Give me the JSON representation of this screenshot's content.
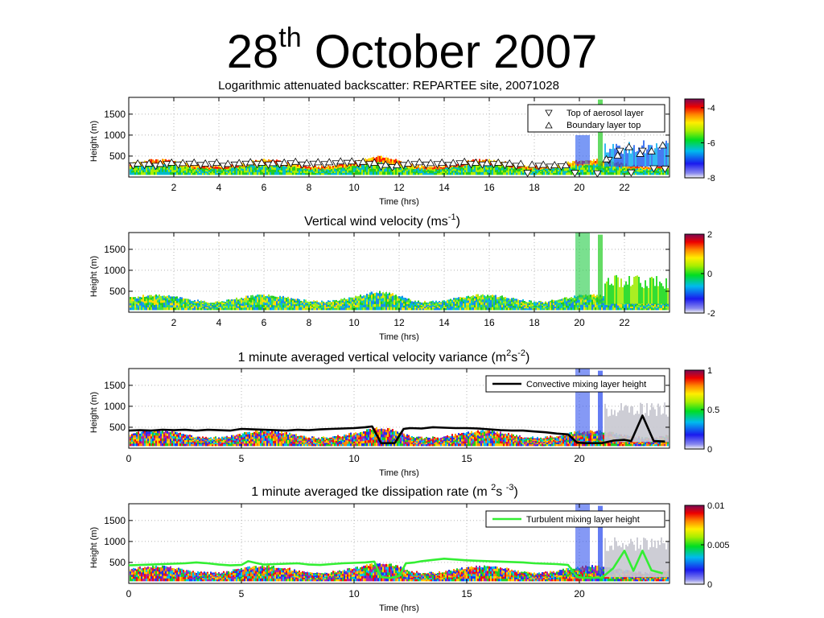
{
  "slide": {
    "title_main": "28",
    "title_sup": "th",
    "title_rest": " October 2007"
  },
  "colors": {
    "ridge": "#ff3300",
    "ridge2": "#ff9900",
    "green": "#22cc22",
    "blue": "#2244ee",
    "convective_line": "#000000",
    "turbulent_line": "#33ee33"
  },
  "chart_data": [
    {
      "type": "heatmap",
      "title": "Logarithmic attenuated backscatter: REPARTEE site, 20071028",
      "xlabel": "Time (hrs)",
      "ylabel": "Height (m)",
      "xlim": [
        0,
        24
      ],
      "ylim": [
        0,
        1900
      ],
      "xticks": [
        "2",
        "4",
        "6",
        "8",
        "10",
        "12",
        "14",
        "16",
        "18",
        "20",
        "22"
      ],
      "xtick_values": [
        2,
        4,
        6,
        8,
        10,
        12,
        14,
        16,
        18,
        20,
        22
      ],
      "yticks": [
        "500",
        "1000",
        "1500"
      ],
      "ytick_values": [
        500,
        1000,
        1500
      ],
      "colorbar": {
        "range": [
          -8,
          -3.5
        ],
        "ticks": [
          "-4",
          "-6",
          "-8"
        ],
        "tick_values": [
          -4,
          -6,
          -8
        ]
      },
      "legend": {
        "position": "top-right",
        "entries": [
          "Top of aerosol layer",
          "Boundary layer top"
        ]
      },
      "grid": true,
      "series": [
        {
          "name": "Top of aerosol layer",
          "marker": "triangle-down",
          "x": [
            0.2,
            0.7,
            1.2,
            1.7,
            2.2,
            2.7,
            3.2,
            3.7,
            4.2,
            4.7,
            5.2,
            5.7,
            6.2,
            6.7,
            7.2,
            7.7,
            8.2,
            8.7,
            9.2,
            9.7,
            10.2,
            10.7,
            11.2,
            11.7,
            12.2,
            12.7,
            13.2,
            13.7,
            14.2,
            14.7,
            15.2,
            15.7,
            16.2,
            16.7,
            17.2,
            17.7,
            18.2,
            18.7,
            19.2,
            19.8,
            20.8,
            21.3,
            21.8,
            22.3,
            22.8,
            23.3,
            23.8
          ],
          "y": [
            270,
            280,
            260,
            300,
            290,
            310,
            280,
            300,
            260,
            290,
            310,
            300,
            290,
            300,
            320,
            290,
            310,
            300,
            320,
            330,
            320,
            300,
            250,
            230,
            280,
            300,
            290,
            300,
            280,
            320,
            300,
            290,
            300,
            280,
            260,
            90,
            260,
            240,
            250,
            90,
            80,
            400,
            620,
            100,
            620,
            200,
            190
          ]
        },
        {
          "name": "Boundary layer top",
          "marker": "triangle-up",
          "x": [
            0.4,
            0.9,
            1.4,
            1.9,
            2.4,
            2.9,
            3.4,
            3.9,
            4.4,
            4.9,
            5.4,
            5.9,
            6.4,
            6.9,
            7.4,
            7.9,
            8.4,
            8.9,
            9.4,
            9.9,
            10.4,
            10.9,
            11.4,
            11.9,
            12.4,
            12.9,
            13.4,
            13.9,
            14.4,
            14.9,
            15.4,
            15.9,
            16.4,
            16.9,
            17.4,
            17.9,
            18.4,
            18.9,
            19.4,
            21.2,
            21.7,
            22.2,
            22.7,
            23.2,
            23.7
          ],
          "y": [
            330,
            330,
            320,
            350,
            340,
            350,
            330,
            350,
            320,
            340,
            360,
            350,
            340,
            350,
            370,
            340,
            360,
            360,
            380,
            380,
            370,
            350,
            300,
            290,
            330,
            360,
            340,
            350,
            340,
            370,
            350,
            340,
            350,
            330,
            320,
            300,
            300,
            290,
            290,
            430,
            520,
            720,
            560,
            620,
            760
          ]
        }
      ]
    },
    {
      "type": "heatmap",
      "title_text": "Vertical wind velocity (ms",
      "title_sup": "-1",
      "title_end": ")",
      "xlabel": "Time (hrs)",
      "ylabel": "Height (m)",
      "xlim": [
        0,
        24
      ],
      "ylim": [
        0,
        1900
      ],
      "xticks": [
        "2",
        "4",
        "6",
        "8",
        "10",
        "12",
        "14",
        "16",
        "18",
        "20",
        "22"
      ],
      "xtick_values": [
        2,
        4,
        6,
        8,
        10,
        12,
        14,
        16,
        18,
        20,
        22
      ],
      "yticks": [
        "500",
        "1000",
        "1500"
      ],
      "ytick_values": [
        500,
        1000,
        1500
      ],
      "colorbar": {
        "range": [
          -2,
          2
        ],
        "ticks": [
          "2",
          "0",
          "-2"
        ],
        "tick_values": [
          2,
          0,
          -2
        ]
      },
      "grid": true
    },
    {
      "type": "heatmap",
      "title_text": "1 minute averaged vertical velocity variance (m",
      "title_sup1": "2",
      "title_mid": "s",
      "title_sup2": "-2",
      "title_end": ")",
      "xlabel": "Time (hrs)",
      "ylabel": "Height (m)",
      "xlim": [
        0,
        24
      ],
      "ylim": [
        0,
        1900
      ],
      "xticks": [
        "0",
        "5",
        "10",
        "15",
        "20"
      ],
      "xtick_values": [
        0,
        5,
        10,
        15,
        20
      ],
      "yticks": [
        "500",
        "1000",
        "1500"
      ],
      "ytick_values": [
        500,
        1000,
        1500
      ],
      "colorbar": {
        "range": [
          0,
          1
        ],
        "ticks": [
          "1",
          "0.5",
          "0"
        ],
        "tick_values": [
          1,
          0.5,
          0
        ]
      },
      "legend": {
        "position": "top-right",
        "entries": [
          "Convective mixing layer height"
        ]
      },
      "grid": true,
      "series": [
        {
          "name": "Convective mixing layer height",
          "x": [
            0,
            0.5,
            1,
            1.5,
            2,
            2.5,
            3,
            3.5,
            4,
            4.5,
            5,
            5.5,
            6,
            6.5,
            7,
            7.5,
            8,
            8.5,
            9,
            9.5,
            10,
            10.5,
            10.8,
            11.2,
            11.5,
            11.8,
            12.2,
            12.5,
            13,
            13.5,
            14,
            14.5,
            15,
            15.5,
            16,
            16.5,
            17,
            17.5,
            18,
            18.5,
            19,
            19.5,
            19.9,
            20.3,
            21,
            21.5,
            22,
            22.3,
            22.8,
            23.3,
            23.8
          ],
          "y": [
            420,
            430,
            420,
            440,
            430,
            440,
            420,
            440,
            430,
            420,
            460,
            450,
            440,
            430,
            420,
            440,
            430,
            450,
            460,
            470,
            480,
            500,
            520,
            120,
            120,
            120,
            460,
            480,
            470,
            500,
            490,
            480,
            480,
            470,
            450,
            430,
            420,
            420,
            400,
            380,
            350,
            330,
            130,
            120,
            120,
            180,
            200,
            170,
            780,
            170,
            160
          ]
        }
      ]
    },
    {
      "type": "heatmap",
      "title_text": "1 minute averaged tke dissipation rate (m ",
      "title_sup1": "2",
      "title_mid": "s ",
      "title_sup2": "-3",
      "title_end": ")",
      "xlabel": "Time (hrs)",
      "ylabel": "Height (m)",
      "xlim": [
        0,
        24
      ],
      "ylim": [
        0,
        1900
      ],
      "xticks": [
        "0",
        "5",
        "10",
        "15",
        "20"
      ],
      "xtick_values": [
        0,
        5,
        10,
        15,
        20
      ],
      "yticks": [
        "500",
        "1000",
        "1500"
      ],
      "ytick_values": [
        500,
        1000,
        1500
      ],
      "colorbar": {
        "range": [
          0,
          0.01
        ],
        "ticks": [
          "0.01",
          "0.005",
          "0"
        ],
        "tick_values": [
          0.01,
          0.005,
          0
        ]
      },
      "legend": {
        "position": "top-right",
        "entries": [
          "Turbulent mixing layer height"
        ]
      },
      "grid": true,
      "series": [
        {
          "name": "Turbulent mixing layer height",
          "x": [
            0,
            0.5,
            1,
            1.5,
            2,
            2.5,
            3,
            3.5,
            4,
            4.5,
            5,
            5.3,
            5.7,
            6,
            6.5,
            7,
            7.5,
            8,
            8.5,
            9,
            9.5,
            10,
            10.5,
            10.9,
            11.2,
            11.6,
            12,
            12.3,
            12.7,
            13,
            13.5,
            14,
            14.5,
            15,
            15.5,
            16,
            16.5,
            17,
            17.5,
            18,
            18.5,
            19,
            19.5,
            19.9,
            20.3,
            21,
            21.5,
            22,
            22.4,
            22.8,
            23.2,
            23.7
          ],
          "y": [
            430,
            440,
            450,
            460,
            470,
            480,
            500,
            480,
            450,
            430,
            440,
            530,
            480,
            450,
            460,
            470,
            480,
            450,
            440,
            460,
            480,
            490,
            500,
            520,
            150,
            130,
            170,
            480,
            500,
            530,
            560,
            590,
            570,
            550,
            540,
            530,
            520,
            510,
            500,
            480,
            470,
            460,
            440,
            150,
            130,
            140,
            360,
            780,
            300,
            780,
            310,
            240
          ]
        }
      ]
    }
  ]
}
